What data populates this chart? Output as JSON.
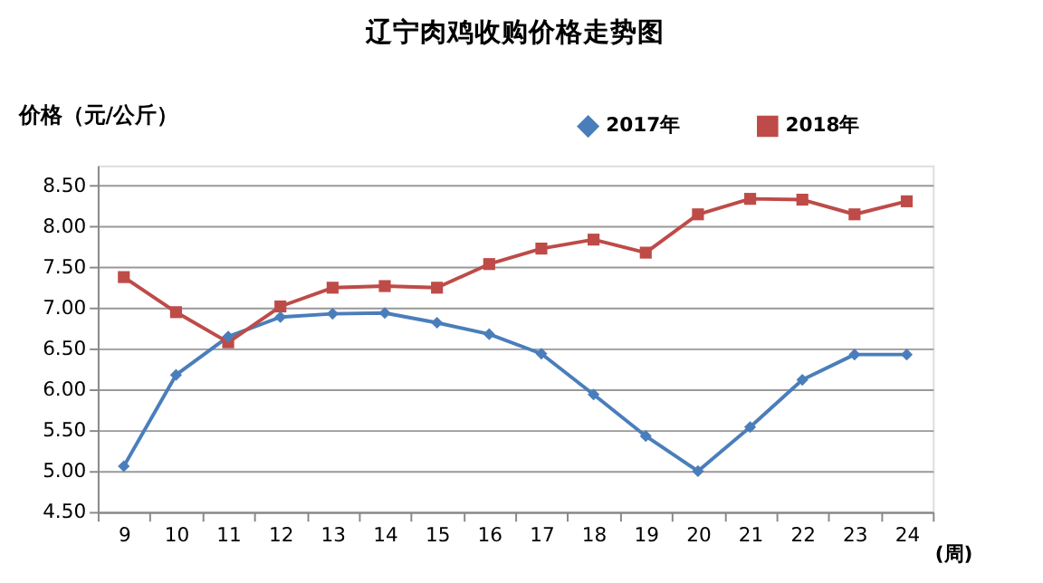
{
  "chart_data": {
    "type": "line",
    "title": "辽宁肉鸡收购价格走势图",
    "ylabel": "价格（元/公斤）",
    "xlabel": "(周)",
    "categories": [
      "9",
      "10",
      "11",
      "12",
      "13",
      "14",
      "15",
      "16",
      "17",
      "18",
      "19",
      "20",
      "21",
      "22",
      "23",
      "24"
    ],
    "series": [
      {
        "name": "2017年",
        "color": "#4a7ebb",
        "marker": "diamond",
        "values": [
          5.06,
          6.18,
          6.65,
          6.89,
          6.93,
          6.94,
          6.82,
          6.68,
          6.44,
          5.94,
          5.43,
          5.0,
          5.54,
          6.12,
          6.43,
          6.43
        ]
      },
      {
        "name": "2018年",
        "color": "#be4b48",
        "marker": "square",
        "values": [
          7.38,
          6.95,
          6.58,
          7.02,
          7.25,
          7.27,
          7.25,
          7.54,
          7.73,
          7.84,
          7.68,
          8.15,
          8.34,
          8.33,
          8.15,
          8.31
        ]
      }
    ],
    "ylim": [
      4.5,
      8.75
    ],
    "yticks": [
      {
        "value": 4.5,
        "label": "4.50"
      },
      {
        "value": 5.0,
        "label": "5.00"
      },
      {
        "value": 5.5,
        "label": "5.50"
      },
      {
        "value": 6.0,
        "label": "6.00"
      },
      {
        "value": 6.5,
        "label": "6.50"
      },
      {
        "value": 7.0,
        "label": "7.00"
      },
      {
        "value": 7.5,
        "label": "7.50"
      },
      {
        "value": 8.0,
        "label": "8.00"
      },
      {
        "value": 8.5,
        "label": "8.50"
      }
    ],
    "grid": "y",
    "legend": "top right",
    "line_style": "solid"
  }
}
